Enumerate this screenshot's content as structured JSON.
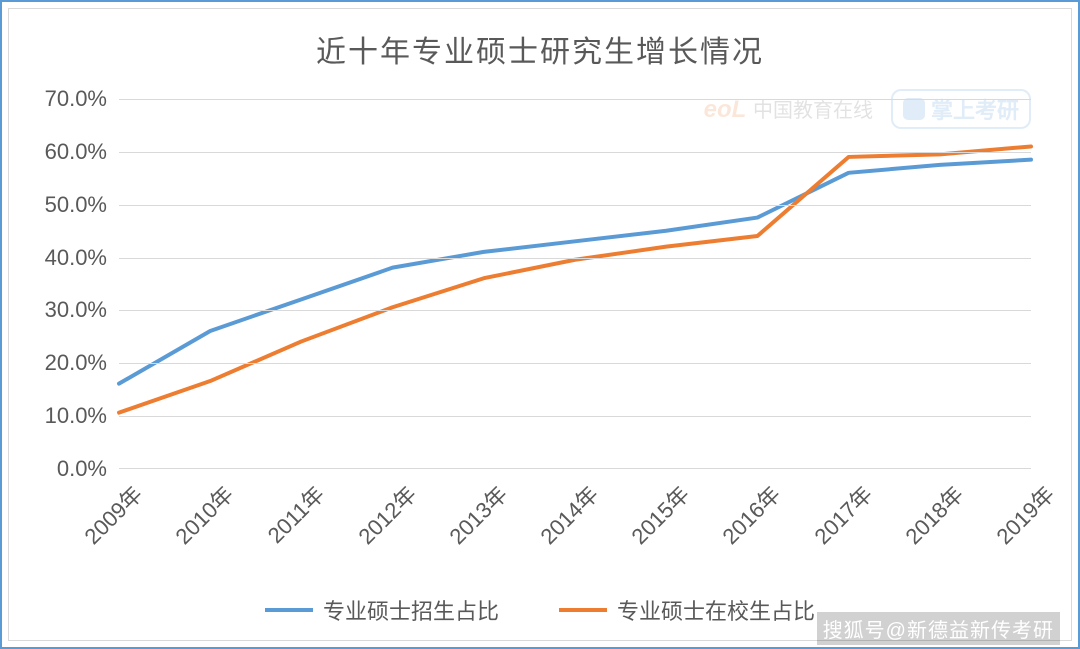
{
  "chart": {
    "type": "line",
    "title": "近十年专业硕士研究生增长情况",
    "title_fontsize": 30,
    "title_color": "#595959",
    "background_color": "#ffffff",
    "border_color": "#5b9bd5",
    "inner_border_color": "#d9d9d9",
    "grid_color": "#d9d9d9",
    "axis_label_color": "#595959",
    "axis_label_fontsize": 22,
    "xtick_rotation_deg": -45,
    "line_width": 4,
    "categories": [
      "2009年",
      "2010年",
      "2011年",
      "2012年",
      "2013年",
      "2014年",
      "2015年",
      "2016年",
      "2017年",
      "2018年",
      "2019年"
    ],
    "ylim": [
      0,
      70
    ],
    "ytick_step": 10,
    "ytick_format": "percent_one_decimal",
    "yticks": [
      "0.0%",
      "10.0%",
      "20.0%",
      "30.0%",
      "40.0%",
      "50.0%",
      "60.0%",
      "70.0%"
    ],
    "series": [
      {
        "name": "专业硕士招生占比",
        "color": "#5b9bd5",
        "values": [
          16.0,
          26.0,
          32.0,
          38.0,
          41.0,
          43.0,
          45.0,
          47.5,
          56.0,
          57.5,
          58.5
        ]
      },
      {
        "name": "专业硕士在校生占比",
        "color": "#ed7d31",
        "values": [
          10.5,
          16.5,
          24.0,
          30.5,
          36.0,
          39.5,
          42.0,
          44.0,
          59.0,
          59.5,
          61.0
        ]
      }
    ],
    "legend": {
      "position": "bottom",
      "swatch_width": 48,
      "swatch_line_width": 4,
      "fontsize": 22
    },
    "watermarks": {
      "eol_text": "eoL",
      "eol_sub": "中国教育在线",
      "zsky_text": "掌上考研"
    }
  },
  "source_label": "搜狐号@新德益新传考研"
}
